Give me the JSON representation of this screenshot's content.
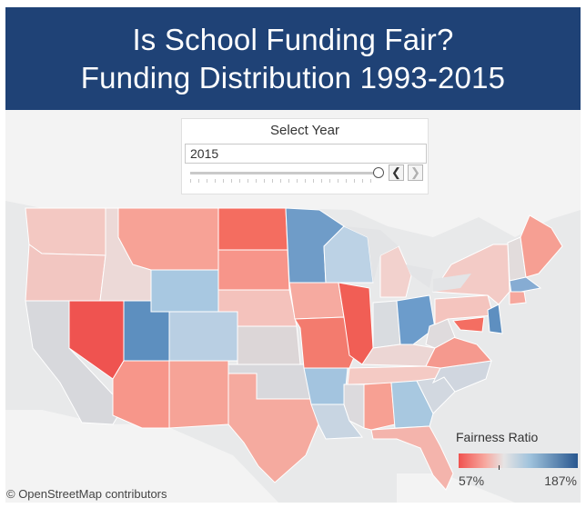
{
  "header": {
    "title_line1": "Is School Funding Fair?",
    "title_line2": "Funding Distribution 1993-2015"
  },
  "year_selector": {
    "title": "Select Year",
    "value": "2015",
    "prev_icon": "chevron-left-icon",
    "next_icon": "chevron-right-icon",
    "slider_position": 1.0
  },
  "legend": {
    "title": "Fairness Ratio",
    "min_label": "57%",
    "max_label": "187%",
    "low_color": "#f0524f",
    "mid_color": "#e6e4e4",
    "high_color": "#28578f"
  },
  "attribution": "© OpenStreetMap contributors",
  "colors": {
    "header_bg": "#1f4276",
    "land_bg": "#f2f2f2",
    "water_bg": "#e8e9ea"
  }
}
